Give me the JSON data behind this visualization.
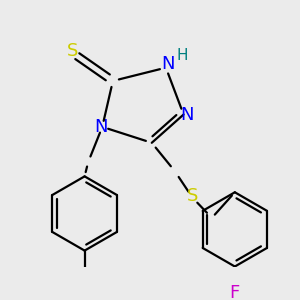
{
  "background_color": "#ebebeb",
  "bond_color": "#000000",
  "bond_width": 1.6,
  "figsize": [
    3.0,
    3.0
  ],
  "dpi": 100,
  "colors": {
    "S_thiol": "#cccc00",
    "N": "#0000ff",
    "H": "#008080",
    "S_thioether": "#cccc00",
    "F": "#cc00cc"
  }
}
